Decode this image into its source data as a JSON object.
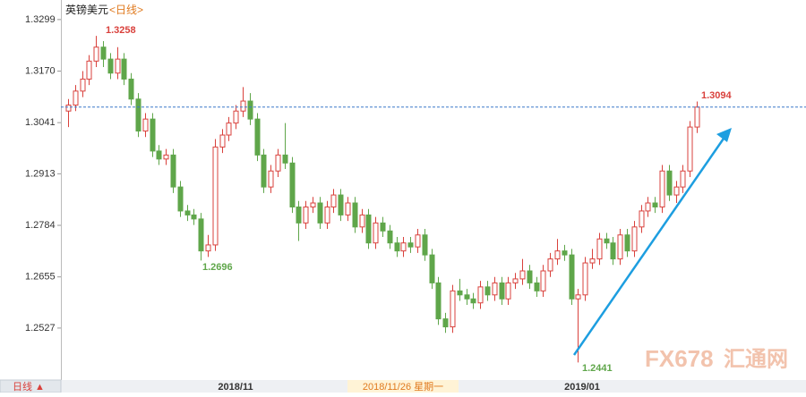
{
  "chart_data": {
    "type": "candlestick",
    "title": "英镑美元",
    "period": "<日线>",
    "up_color": "#d9413c",
    "down_color": "#5fa64a",
    "last_line_color": "#3a78c9",
    "ylim": [
      1.2397,
      1.333
    ],
    "yticks": [
      1.3299,
      {
        "value": 1.317,
        "label": "1.3170"
      },
      1.3041,
      1.2913,
      1.2784,
      1.2655,
      1.2527
    ],
    "x_tick_labels": [
      "2018/11",
      "2019/01"
    ],
    "cursor_label": "2018/11/26 星期一",
    "annotations": [
      "1.3258",
      "1.2696",
      "1.2441",
      "1.3094"
    ],
    "button_label": "日线 ▲",
    "watermark": [
      "FX678",
      "汇通网"
    ],
    "candles": [
      [
        1.307,
        1.31,
        1.303,
        1.3085
      ],
      [
        1.3085,
        1.3135,
        1.307,
        1.312
      ],
      [
        1.312,
        1.317,
        1.3105,
        1.315
      ],
      [
        1.315,
        1.321,
        1.3135,
        1.3195
      ],
      [
        1.3195,
        1.3258,
        1.318,
        1.323
      ],
      [
        1.323,
        1.3245,
        1.318,
        1.32
      ],
      [
        1.32,
        1.3215,
        1.315,
        1.3165
      ],
      [
        1.3165,
        1.323,
        1.315,
        1.32
      ],
      [
        1.32,
        1.3215,
        1.3135,
        1.315
      ],
      [
        1.315,
        1.3165,
        1.3085,
        1.31
      ],
      [
        1.31,
        1.3115,
        1.3005,
        1.302
      ],
      [
        1.302,
        1.3065,
        1.3005,
        1.305
      ],
      [
        1.305,
        1.3065,
        1.2955,
        1.297
      ],
      [
        1.297,
        1.2985,
        1.2935,
        1.295
      ],
      [
        1.295,
        1.2975,
        1.2935,
        1.296
      ],
      [
        1.296,
        1.2975,
        1.2865,
        1.288
      ],
      [
        1.288,
        1.2895,
        1.2805,
        1.282
      ],
      [
        1.282,
        1.2835,
        1.2795,
        1.281
      ],
      [
        1.281,
        1.2825,
        1.2785,
        1.28
      ],
      [
        1.28,
        1.2815,
        1.2696,
        1.272
      ],
      [
        1.272,
        1.276,
        1.2705,
        1.2735
      ],
      [
        1.2735,
        1.3,
        1.272,
        1.298
      ],
      [
        1.298,
        1.3025,
        1.2965,
        1.301
      ],
      [
        1.301,
        1.3055,
        1.2995,
        1.304
      ],
      [
        1.304,
        1.3085,
        1.3025,
        1.307
      ],
      [
        1.307,
        1.313,
        1.3055,
        1.3095
      ],
      [
        1.3095,
        1.3115,
        1.3035,
        1.305
      ],
      [
        1.305,
        1.3065,
        1.2945,
        1.296
      ],
      [
        1.296,
        1.2975,
        1.2865,
        1.288
      ],
      [
        1.288,
        1.2935,
        1.2865,
        1.292
      ],
      [
        1.292,
        1.2975,
        1.2905,
        1.296
      ],
      [
        1.296,
        1.304,
        1.2925,
        1.294
      ],
      [
        1.294,
        1.2955,
        1.2815,
        1.283
      ],
      [
        1.283,
        1.2845,
        1.2745,
        1.279
      ],
      [
        1.279,
        1.2845,
        1.2775,
        1.283
      ],
      [
        1.283,
        1.2855,
        1.2815,
        1.284
      ],
      [
        1.284,
        1.2855,
        1.2775,
        1.279
      ],
      [
        1.279,
        1.2845,
        1.2775,
        1.283
      ],
      [
        1.283,
        1.2875,
        1.2815,
        1.286
      ],
      [
        1.286,
        1.2875,
        1.2795,
        1.281
      ],
      [
        1.281,
        1.2855,
        1.2795,
        1.284
      ],
      [
        1.284,
        1.2855,
        1.2765,
        1.278
      ],
      [
        1.278,
        1.2825,
        1.2765,
        1.281
      ],
      [
        1.281,
        1.2825,
        1.2725,
        1.274
      ],
      [
        1.274,
        1.2805,
        1.2725,
        1.279
      ],
      [
        1.279,
        1.2805,
        1.2755,
        1.277
      ],
      [
        1.277,
        1.2785,
        1.2725,
        1.274
      ],
      [
        1.274,
        1.2755,
        1.2705,
        1.272
      ],
      [
        1.272,
        1.2755,
        1.2705,
        1.274
      ],
      [
        1.274,
        1.2755,
        1.2715,
        1.273
      ],
      [
        1.273,
        1.2775,
        1.2715,
        1.276
      ],
      [
        1.276,
        1.2775,
        1.2695,
        1.271
      ],
      [
        1.271,
        1.2725,
        1.2625,
        1.264
      ],
      [
        1.264,
        1.2655,
        1.2535,
        1.255
      ],
      [
        1.255,
        1.2565,
        1.2515,
        1.253
      ],
      [
        1.253,
        1.2635,
        1.2515,
        1.262
      ],
      [
        1.262,
        1.265,
        1.2595,
        1.261
      ],
      [
        1.261,
        1.2625,
        1.2585,
        1.26
      ],
      [
        1.26,
        1.2615,
        1.2575,
        1.259
      ],
      [
        1.259,
        1.2645,
        1.2575,
        1.263
      ],
      [
        1.263,
        1.2645,
        1.2595,
        1.261
      ],
      [
        1.261,
        1.2655,
        1.2595,
        1.264
      ],
      [
        1.264,
        1.2655,
        1.2585,
        1.26
      ],
      [
        1.26,
        1.2655,
        1.2585,
        1.264
      ],
      [
        1.264,
        1.2665,
        1.2625,
        1.265
      ],
      [
        1.265,
        1.27,
        1.2635,
        1.267
      ],
      [
        1.267,
        1.2685,
        1.2625,
        1.264
      ],
      [
        1.264,
        1.2655,
        1.2605,
        1.262
      ],
      [
        1.262,
        1.2685,
        1.2605,
        1.267
      ],
      [
        1.267,
        1.2715,
        1.2655,
        1.27
      ],
      [
        1.27,
        1.275,
        1.2685,
        1.272
      ],
      [
        1.272,
        1.2735,
        1.2695,
        1.271
      ],
      [
        1.271,
        1.2725,
        1.2585,
        1.26
      ],
      [
        1.26,
        1.2625,
        1.2441,
        1.261
      ],
      [
        1.261,
        1.2705,
        1.2595,
        1.269
      ],
      [
        1.269,
        1.2725,
        1.2675,
        1.27
      ],
      [
        1.27,
        1.2765,
        1.2685,
        1.275
      ],
      [
        1.275,
        1.2765,
        1.2725,
        1.274
      ],
      [
        1.274,
        1.2755,
        1.2685,
        1.27
      ],
      [
        1.27,
        1.2775,
        1.2685,
        1.276
      ],
      [
        1.276,
        1.2775,
        1.2705,
        1.272
      ],
      [
        1.272,
        1.2795,
        1.2705,
        1.278
      ],
      [
        1.278,
        1.2835,
        1.2765,
        1.282
      ],
      [
        1.282,
        1.2855,
        1.2805,
        1.284
      ],
      [
        1.284,
        1.2855,
        1.2815,
        1.283
      ],
      [
        1.283,
        1.2935,
        1.2815,
        1.292
      ],
      [
        1.292,
        1.2935,
        1.2845,
        1.286
      ],
      [
        1.286,
        1.2895,
        1.284,
        1.288
      ],
      [
        1.288,
        1.2935,
        1.2865,
        1.292
      ],
      [
        1.292,
        1.3045,
        1.2905,
        1.303
      ],
      [
        1.303,
        1.3094,
        1.3015,
        1.308
      ]
    ]
  }
}
